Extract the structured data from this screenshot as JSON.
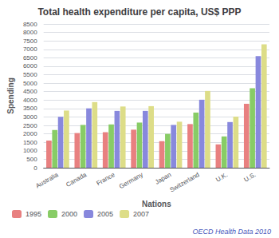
{
  "chart_data": {
    "type": "bar",
    "title": "Total health expenditure per capita, US$ PPP",
    "xlabel": "Nations",
    "ylabel": "Spending",
    "categories": [
      "Australia",
      "Canada",
      "France",
      "Germany",
      "Japan",
      "Switzerland",
      "U.K.",
      "U.S."
    ],
    "series": [
      {
        "name": "1995",
        "color": "#e88080",
        "values": [
          1600,
          2050,
          2100,
          2250,
          1570,
          2580,
          1380,
          3780
        ]
      },
      {
        "name": "2000",
        "color": "#88cc66",
        "values": [
          2230,
          2530,
          2560,
          2670,
          2000,
          3260,
          1850,
          4700
        ]
      },
      {
        "name": "2005",
        "color": "#8888dd",
        "values": [
          3010,
          3510,
          3360,
          3360,
          2530,
          4020,
          2700,
          6600
        ]
      },
      {
        "name": "2007",
        "color": "#dddd88",
        "values": [
          3380,
          3880,
          3620,
          3640,
          2720,
          4540,
          3020,
          7290
        ]
      }
    ],
    "ylim": [
      0,
      8500
    ],
    "yticks": [
      0,
      500,
      1000,
      1500,
      2000,
      2500,
      3000,
      3500,
      4000,
      4500,
      5000,
      5500,
      6000,
      6500,
      7000,
      7500,
      8000,
      8500
    ],
    "grid": true,
    "legend": "bottom",
    "annotation": "OECD Health Data 2010"
  }
}
